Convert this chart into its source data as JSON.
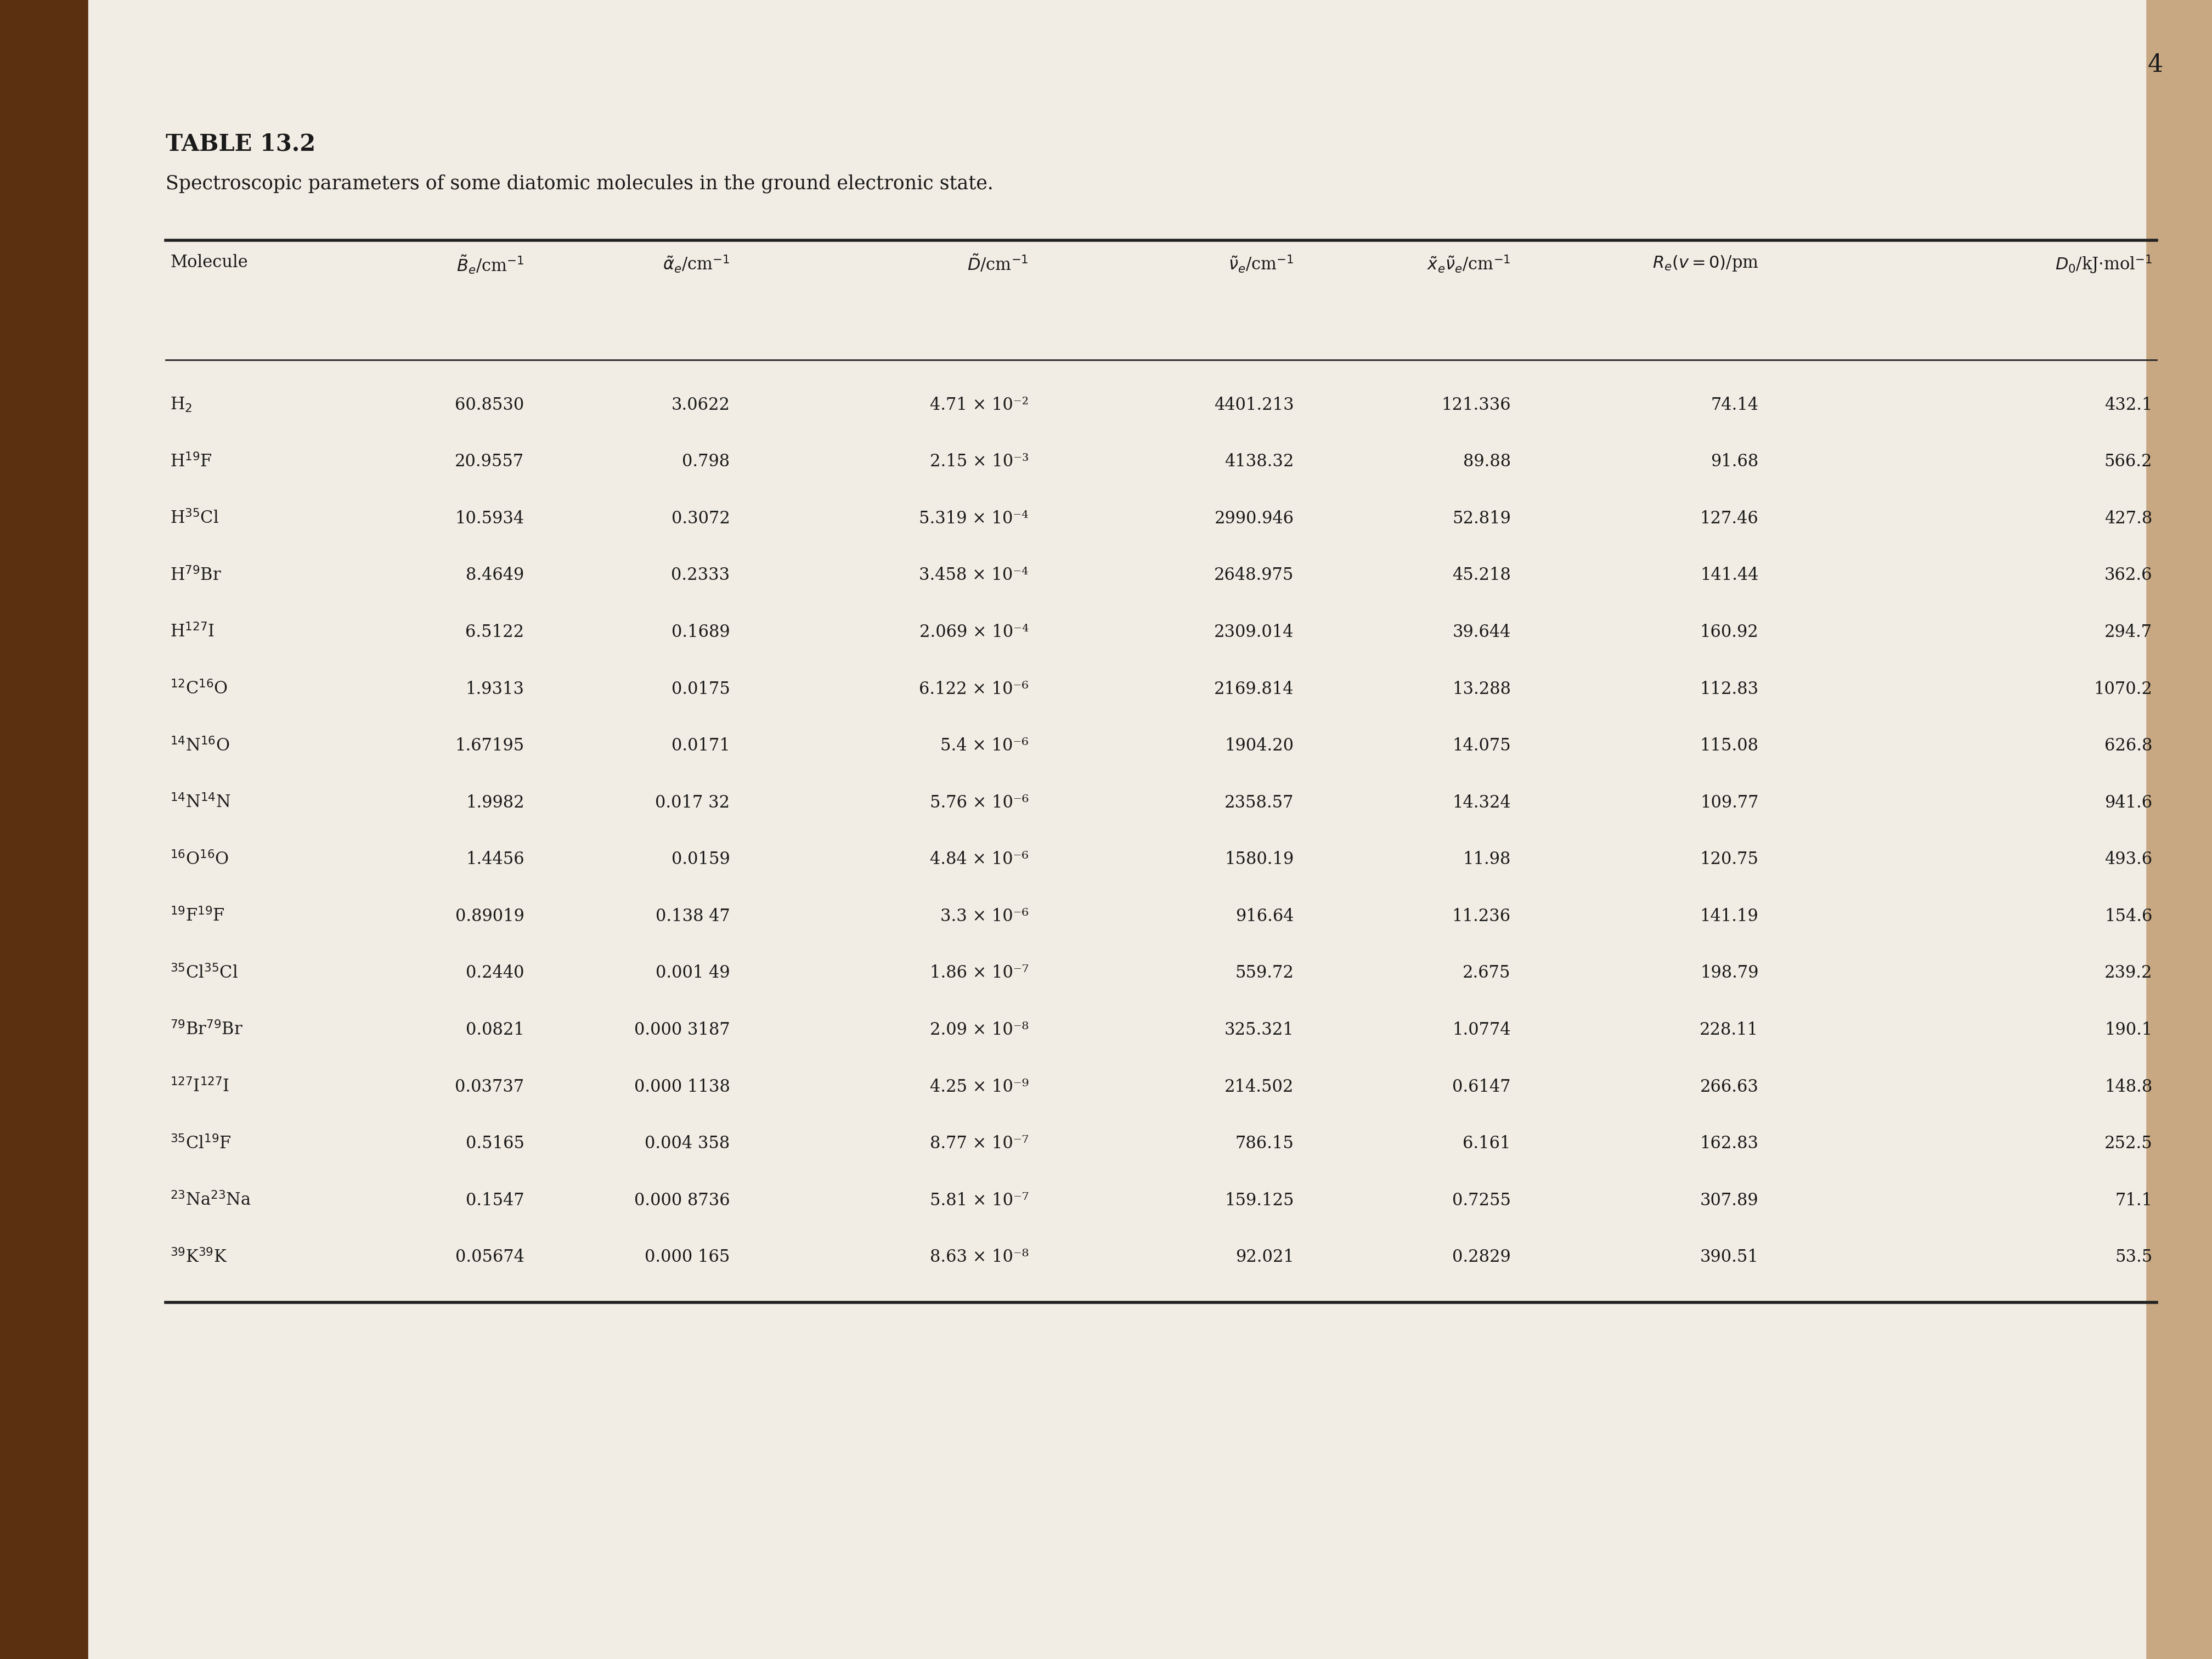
{
  "title": "TABLE 13.2",
  "subtitle": "Spectroscopic parameters of some diatomic molecules in the ground electronic state.",
  "rows": [
    [
      "H$_2$",
      "60.8530",
      "3.0622",
      "4.71 × 10⁻²",
      "4401.213",
      "121.336",
      "74.14",
      "432.1"
    ],
    [
      "H$^{19}$F",
      "20.9557",
      "0.798",
      "2.15 × 10⁻³",
      "4138.32",
      "89.88",
      "91.68",
      "566.2"
    ],
    [
      "H$^{35}$Cl",
      "10.5934",
      "0.3072",
      "5.319 × 10⁻⁴",
      "2990.946",
      "52.819",
      "127.46",
      "427.8"
    ],
    [
      "H$^{79}$Br",
      "8.4649",
      "0.2333",
      "3.458 × 10⁻⁴",
      "2648.975",
      "45.218",
      "141.44",
      "362.6"
    ],
    [
      "H$^{127}$I",
      "6.5122",
      "0.1689",
      "2.069 × 10⁻⁴",
      "2309.014",
      "39.644",
      "160.92",
      "294.7"
    ],
    [
      "$^{12}$C$^{16}$O",
      "1.9313",
      "0.0175",
      "6.122 × 10⁻⁶",
      "2169.814",
      "13.288",
      "112.83",
      "1070.2"
    ],
    [
      "$^{14}$N$^{16}$O",
      "1.67195",
      "0.0171",
      "5.4 × 10⁻⁶",
      "1904.20",
      "14.075",
      "115.08",
      "626.8"
    ],
    [
      "$^{14}$N$^{14}$N",
      "1.9982",
      "0.017 32",
      "5.76 × 10⁻⁶",
      "2358.57",
      "14.324",
      "109.77",
      "941.6"
    ],
    [
      "$^{16}$O$^{16}$O",
      "1.4456",
      "0.0159",
      "4.84 × 10⁻⁶",
      "1580.19",
      "11.98",
      "120.75",
      "493.6"
    ],
    [
      "$^{19}$F$^{19}$F",
      "0.89019",
      "0.138 47",
      "3.3 × 10⁻⁶",
      "916.64",
      "11.236",
      "141.19",
      "154.6"
    ],
    [
      "$^{35}$Cl$^{35}$Cl",
      "0.2440",
      "0.001 49",
      "1.86 × 10⁻⁷",
      "559.72",
      "2.675",
      "198.79",
      "239.2"
    ],
    [
      "$^{79}$Br$^{79}$Br",
      "0.0821",
      "0.000 3187",
      "2.09 × 10⁻⁸",
      "325.321",
      "1.0774",
      "228.11",
      "190.1"
    ],
    [
      "$^{127}$I$^{127}$I",
      "0.03737",
      "0.000 1138",
      "4.25 × 10⁻⁹",
      "214.502",
      "0.6147",
      "266.63",
      "148.8"
    ],
    [
      "$^{35}$Cl$^{19}$F",
      "0.5165",
      "0.004 358",
      "8.77 × 10⁻⁷",
      "786.15",
      "6.161",
      "162.83",
      "252.5"
    ],
    [
      "$^{23}$Na$^{23}$Na",
      "0.1547",
      "0.000 8736",
      "5.81 × 10⁻⁷",
      "159.125",
      "0.7255",
      "307.89",
      "71.1"
    ],
    [
      "$^{39}$K$^{39}$K",
      "0.05674",
      "0.000 165",
      "8.63 × 10⁻⁸",
      "92.021",
      "0.2829",
      "390.51",
      "53.5"
    ]
  ],
  "page_bg": "#d4956a",
  "paper_bg": "#f2ede4",
  "spine_color": "#8b5a2b",
  "text_color": "#1a1a1a",
  "line_color": "#222222",
  "page_number": "4"
}
